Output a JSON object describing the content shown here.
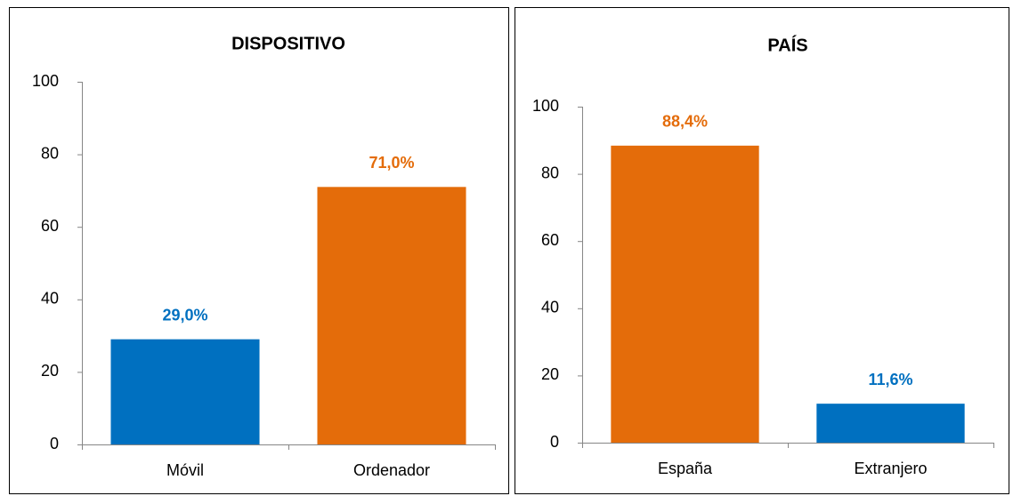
{
  "chart_data": [
    {
      "type": "bar",
      "title": "DISPOSITIVO",
      "categories": [
        "Móvil",
        "Ordenador"
      ],
      "values": [
        29.0,
        71.0
      ],
      "value_labels": [
        "29,0%",
        "71,0%"
      ],
      "colors": [
        "#0070c0",
        "#e46c0a"
      ],
      "ylim": [
        0,
        100
      ],
      "yticks": [
        0,
        20,
        40,
        60,
        80,
        100
      ],
      "grid": false
    },
    {
      "type": "bar",
      "title": "PAÍS",
      "categories": [
        "España",
        "Extranjero"
      ],
      "values": [
        88.4,
        11.6
      ],
      "value_labels": [
        "88,4%",
        "11,6%"
      ],
      "colors": [
        "#e46c0a",
        "#0070c0"
      ],
      "ylim": [
        0,
        100
      ],
      "yticks": [
        0,
        20,
        40,
        60,
        80,
        100
      ],
      "grid": false
    }
  ]
}
